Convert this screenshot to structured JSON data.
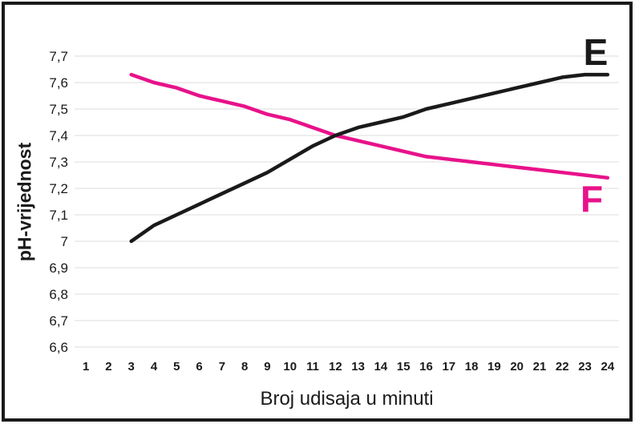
{
  "chart_data": {
    "type": "line",
    "title": "",
    "xlabel": "Broj udisaja u minuti",
    "ylabel": "pH-vrijednost",
    "xlim": [
      0.5,
      24.5
    ],
    "ylim": [
      6.6,
      7.7
    ],
    "grid": "horizontal",
    "grid_color": "#dcdcdc",
    "legend_position": "end-of-line-labels",
    "x_ticks": [
      1,
      2,
      3,
      4,
      5,
      6,
      7,
      8,
      9,
      10,
      11,
      12,
      13,
      14,
      15,
      16,
      17,
      18,
      19,
      20,
      21,
      22,
      23,
      24
    ],
    "y_tick_values": [
      6.6,
      6.7,
      6.8,
      6.9,
      7.0,
      7.1,
      7.2,
      7.3,
      7.4,
      7.5,
      7.6,
      7.7
    ],
    "y_tick_labels": [
      "6,6",
      "6,7",
      "6,8",
      "6,9",
      "7",
      "7,1",
      "7,2",
      "7,3",
      "7,4",
      "7,5",
      "7,6",
      "7,7"
    ],
    "series": [
      {
        "name": "E",
        "color": "#1a1a1a",
        "x": [
          3,
          4,
          5,
          6,
          7,
          8,
          9,
          10,
          11,
          12,
          13,
          14,
          15,
          16,
          17,
          18,
          19,
          20,
          21,
          22,
          23,
          24
        ],
        "values": [
          7.0,
          7.06,
          7.1,
          7.14,
          7.18,
          7.22,
          7.26,
          7.31,
          7.36,
          7.4,
          7.43,
          7.45,
          7.47,
          7.5,
          7.52,
          7.54,
          7.56,
          7.58,
          7.6,
          7.62,
          7.63,
          7.63
        ]
      },
      {
        "name": "F",
        "color": "#e8128a",
        "x": [
          3,
          4,
          5,
          6,
          7,
          8,
          9,
          10,
          11,
          12,
          13,
          14,
          15,
          16,
          17,
          18,
          19,
          20,
          21,
          22,
          23,
          24
        ],
        "values": [
          7.63,
          7.6,
          7.58,
          7.55,
          7.53,
          7.51,
          7.48,
          7.46,
          7.43,
          7.4,
          7.38,
          7.36,
          7.34,
          7.32,
          7.31,
          7.3,
          7.29,
          7.28,
          7.27,
          7.26,
          7.25,
          7.24
        ]
      }
    ]
  }
}
